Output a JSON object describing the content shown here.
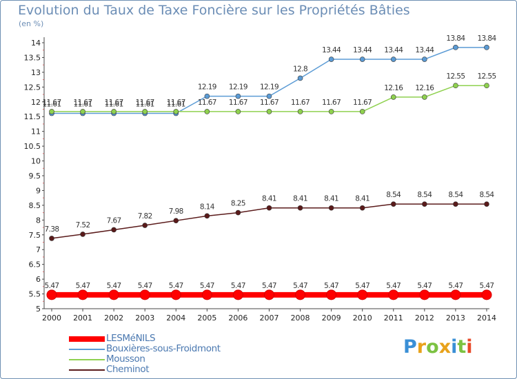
{
  "title": "Evolution du Taux de Taxe Foncière sur les Propriétés Bâties",
  "unit": "(en %)",
  "logo": {
    "text": "Proxiti",
    "letters": [
      "P",
      "r",
      "o",
      "x",
      "i",
      "t",
      "i"
    ],
    "colors": [
      "#3a8fd6",
      "#e8a21b",
      "#7cc242",
      "#e8a21b",
      "#3a8fd6",
      "#7cc242",
      "#e84a2a"
    ]
  },
  "chart_data": {
    "type": "line",
    "title": "Evolution du Taux de Taxe Foncière sur les Propriétés Bâties",
    "ylabel": "(en %)",
    "xlabel": "",
    "ylim": [
      5,
      14
    ],
    "yticks": [
      "5",
      "5.5",
      "6",
      "6.5",
      "7",
      "7.5",
      "8",
      "8.5",
      "9",
      "9.5",
      "10",
      "10.5",
      "11",
      "11.5",
      "12",
      "12.5",
      "13",
      "13.5",
      "14"
    ],
    "x": [
      "2000",
      "2001",
      "2002",
      "2003",
      "2004",
      "2005",
      "2006",
      "2007",
      "2008",
      "2009",
      "2010",
      "2011",
      "2012",
      "2013",
      "2014"
    ],
    "series": [
      {
        "name": "Cheminot",
        "color": "#5a1a1a",
        "values": [
          7.38,
          7.52,
          7.67,
          7.82,
          7.98,
          8.14,
          8.25,
          8.41,
          8.41,
          8.41,
          8.41,
          8.54,
          8.54,
          8.54,
          8.54
        ],
        "labels": [
          "7.38",
          "7.52",
          "7.67",
          "7.82",
          "7.98",
          "8.14",
          "8.25",
          "8.41",
          "8.41",
          "8.41",
          "8.41",
          "8.54",
          "8.54",
          "8.54",
          "8.54"
        ]
      },
      {
        "name": "Bouxières-sous-Froidmont",
        "color": "#5b9bd5",
        "values": [
          11.61,
          11.61,
          11.61,
          11.61,
          11.61,
          12.19,
          12.19,
          12.19,
          12.8,
          13.44,
          13.44,
          13.44,
          13.44,
          13.84,
          13.84
        ],
        "labels": [
          "11.61",
          "11.61",
          "11.61",
          "11.61",
          "11.61",
          "12.19",
          "12.19",
          "12.19",
          "12.8",
          "13.44",
          "13.44",
          "13.44",
          "13.44",
          "13.84",
          "13.84"
        ]
      },
      {
        "name": "Mousson",
        "color": "#8fd14f",
        "values": [
          11.67,
          11.67,
          11.67,
          11.67,
          11.67,
          11.67,
          11.67,
          11.67,
          11.67,
          11.67,
          11.67,
          12.16,
          12.16,
          12.55,
          12.55
        ],
        "labels": [
          "11.67",
          "11.67",
          "11.67",
          "11.67",
          "11.67",
          "11.67",
          "11.67",
          "11.67",
          "11.67",
          "11.67",
          "11.67",
          "12.16",
          "12.16",
          "12.55",
          "12.55"
        ]
      },
      {
        "name": "LESMéNILS",
        "color": "#ff0000",
        "values": [
          5.47,
          5.47,
          5.47,
          5.47,
          5.47,
          5.47,
          5.47,
          5.47,
          5.47,
          5.47,
          5.47,
          5.47,
          5.47,
          5.47,
          5.47
        ],
        "labels": [
          "5.47",
          "5.47",
          "5.47",
          "5.47",
          "5.47",
          "5.47",
          "5.47",
          "5.47",
          "5.47",
          "5.47",
          "5.47",
          "5.47",
          "5.47",
          "5.47",
          "5.47"
        ]
      }
    ],
    "legend": [
      {
        "name": "LESMéNILS",
        "color": "#ff0000"
      },
      {
        "name": "Bouxières-sous-Froidmont",
        "color": "#5b9bd5"
      },
      {
        "name": "Mousson",
        "color": "#8fd14f"
      },
      {
        "name": "Cheminot",
        "color": "#5a1a1a"
      }
    ],
    "legend_position": "bottom-left",
    "grid": false
  }
}
